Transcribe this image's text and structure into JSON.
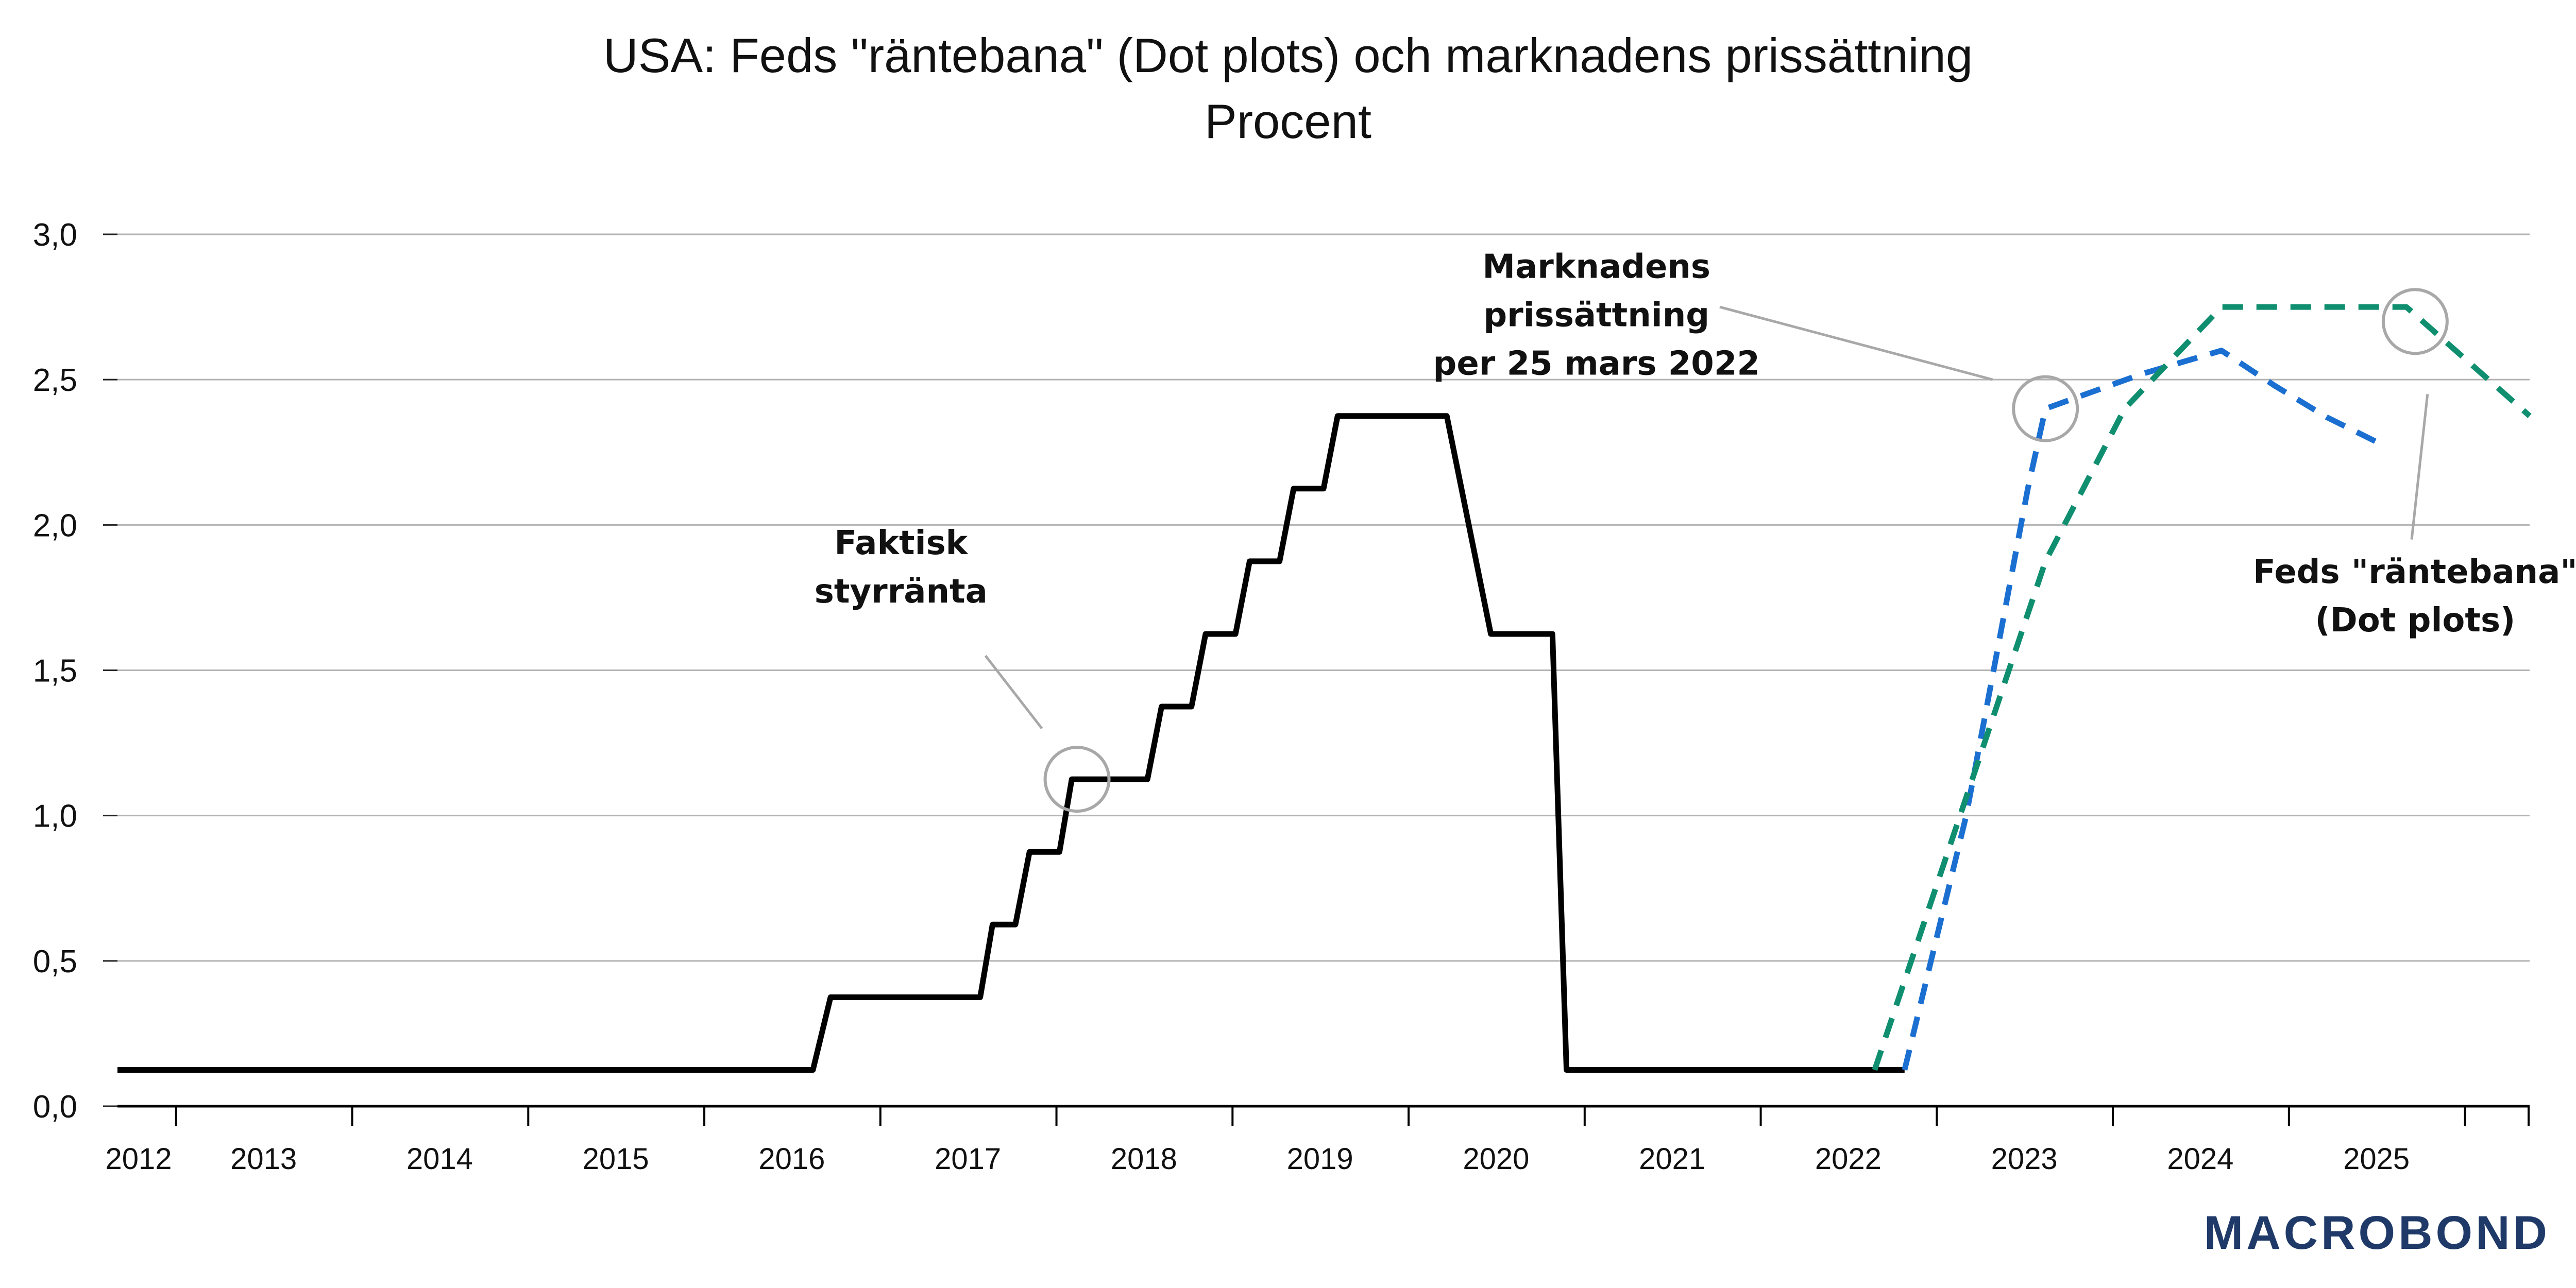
{
  "chart_data": {
    "type": "line",
    "title": "USA: Feds \"räntebana\" (Dot plots) och marknadens prissättning",
    "subtitle": "Procent",
    "xlabel": "",
    "ylabel": "",
    "xlim": [
      2012.0,
      2025.7
    ],
    "ylim": [
      0,
      3.0
    ],
    "y_ticks": [
      "0,0",
      "0,5",
      "1,0",
      "1,5",
      "2,0",
      "2,5",
      "3,0"
    ],
    "x_ticks": [
      "2012",
      "2013",
      "2014",
      "2015",
      "2016",
      "2017",
      "2018",
      "2019",
      "2020",
      "2021",
      "2022",
      "2023",
      "2024",
      "2025"
    ],
    "grid": "horizontal",
    "series": [
      {
        "name": "Faktisk styrränta",
        "color": "#000000",
        "style": "solid",
        "points": [
          [
            2012.0,
            0.125
          ],
          [
            2015.95,
            0.125
          ],
          [
            2016.05,
            0.375
          ],
          [
            2016.9,
            0.375
          ],
          [
            2016.97,
            0.625
          ],
          [
            2017.1,
            0.625
          ],
          [
            2017.18,
            0.875
          ],
          [
            2017.35,
            0.875
          ],
          [
            2017.42,
            1.125
          ],
          [
            2017.85,
            1.125
          ],
          [
            2017.93,
            1.375
          ],
          [
            2018.1,
            1.375
          ],
          [
            2018.18,
            1.625
          ],
          [
            2018.35,
            1.625
          ],
          [
            2018.43,
            1.875
          ],
          [
            2018.6,
            1.875
          ],
          [
            2018.68,
            2.125
          ],
          [
            2018.85,
            2.125
          ],
          [
            2018.93,
            2.375
          ],
          [
            2019.55,
            2.375
          ],
          [
            2019.8,
            1.625
          ],
          [
            2020.15,
            1.625
          ],
          [
            2020.23,
            0.125
          ],
          [
            2022.15,
            0.125
          ]
        ]
      },
      {
        "name": "Marknadens prissättning per 25 mars 2022",
        "color": "#1a6fd1",
        "style": "dashed",
        "points": [
          [
            2022.15,
            0.125
          ],
          [
            2022.5,
            1.0
          ],
          [
            2022.85,
            2.125
          ],
          [
            2022.95,
            2.4
          ],
          [
            2023.5,
            2.52
          ],
          [
            2023.95,
            2.6
          ],
          [
            2024.25,
            2.48
          ],
          [
            2024.55,
            2.37
          ],
          [
            2024.85,
            2.28
          ]
        ]
      },
      {
        "name": "Feds \"räntebana\" (Dot plots)",
        "color": "#0f8f6f",
        "style": "dashed",
        "points": [
          [
            2021.98,
            0.125
          ],
          [
            2022.95,
            1.875
          ],
          [
            2023.4,
            2.4
          ],
          [
            2023.95,
            2.75
          ],
          [
            2025.0,
            2.75
          ],
          [
            2025.7,
            2.375
          ]
        ]
      }
    ],
    "annotations": [
      {
        "lines": [
          "Faktisk",
          "styrränta"
        ],
        "target": [
          2017.45,
          1.125
        ],
        "leader": [
          [
            2016.93,
            1.55
          ],
          [
            2017.25,
            1.3
          ]
        ],
        "text_at": [
          2016.45,
          1.9
        ]
      },
      {
        "lines": [
          "Marknadens",
          "prissättning",
          "per 25 mars 2022"
        ],
        "target": [
          2022.95,
          2.4
        ],
        "leader": [
          [
            2021.1,
            2.75
          ],
          [
            2022.65,
            2.5
          ]
        ],
        "text_at": [
          2020.4,
          2.85
        ]
      },
      {
        "lines": [
          "Feds \"räntebana\"",
          "(Dot plots)"
        ],
        "target": [
          2025.05,
          2.7
        ],
        "leader": [
          [
            2025.12,
            2.45
          ],
          [
            2025.03,
            1.95
          ]
        ],
        "text_at": [
          2025.05,
          1.8
        ]
      }
    ],
    "source_logo": "MACROBOND"
  }
}
